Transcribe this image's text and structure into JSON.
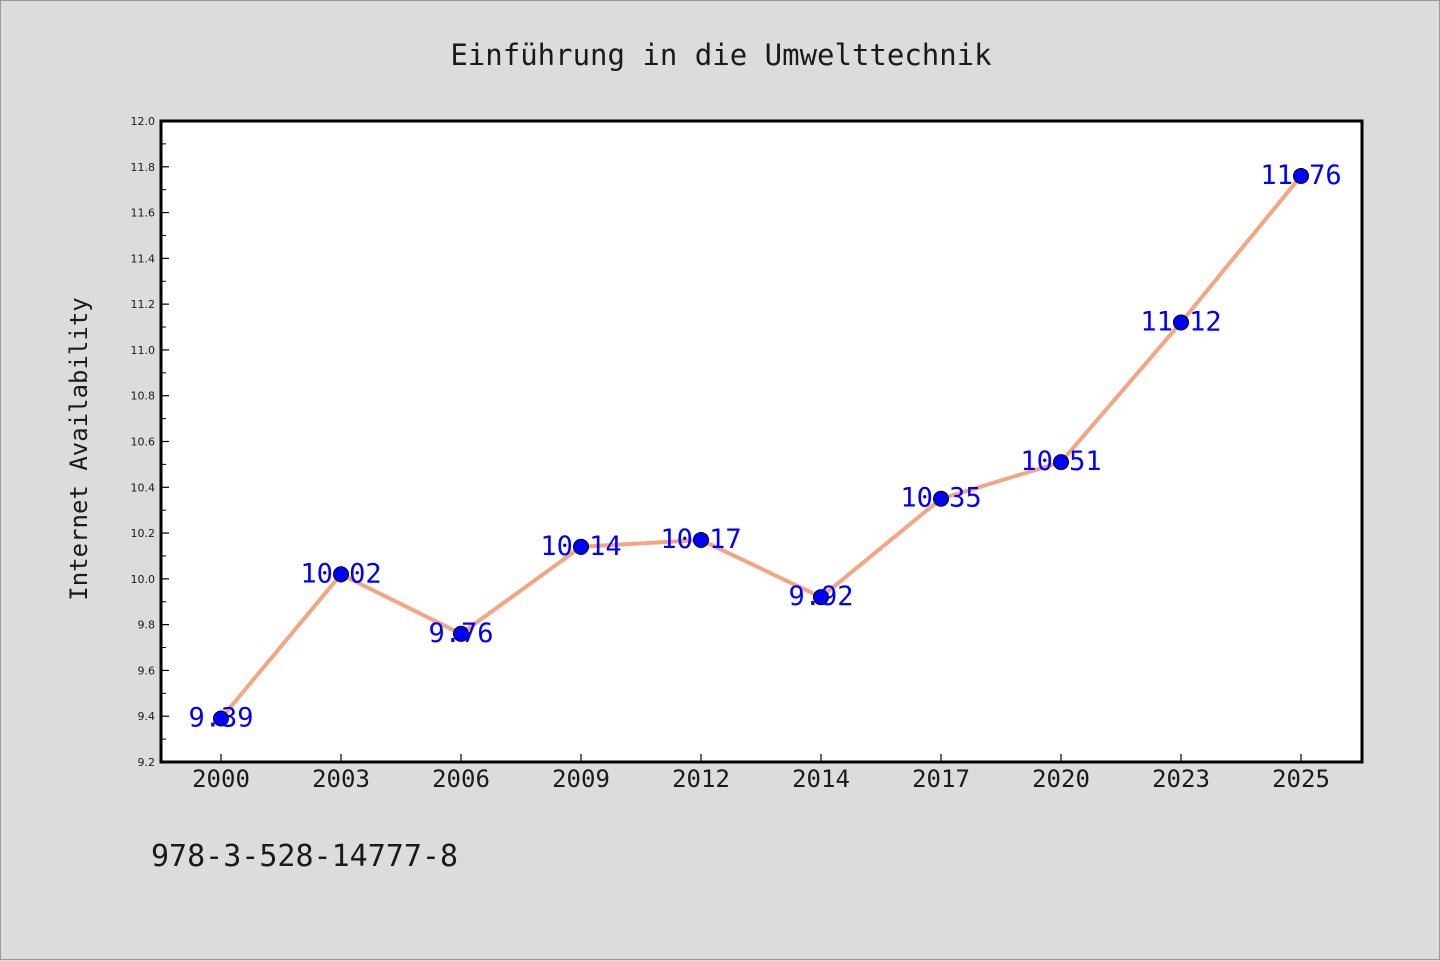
{
  "page": {
    "title": "Einführung in die Umwelttechnik",
    "footer_text": "978-3-528-14777-8"
  },
  "colors": {
    "background": "#dcdcdc",
    "plot_background": "#ffffff",
    "line": "#f4a582",
    "marker": "#0000ff",
    "label": "#0000ff",
    "text": "#1a1a1a"
  },
  "chart_data": {
    "type": "line",
    "title": "Einführung in die Umwelttechnik",
    "xlabel": "",
    "ylabel": "Internet Availability",
    "categories": [
      "2000",
      "2003",
      "2006",
      "2009",
      "2012",
      "2014",
      "2017",
      "2020",
      "2023",
      "2025"
    ],
    "series": [
      {
        "values": [
          9.39,
          10.02,
          9.76,
          10.14,
          10.17,
          9.92,
          10.35,
          10.51,
          11.12,
          11.76
        ],
        "labels": [
          "9.39",
          "10.02",
          "9.76",
          "10.14",
          "10.17",
          "9.92",
          "10.35",
          "10.51",
          "11.12",
          "11.76"
        ]
      }
    ],
    "ylim": [
      9.2,
      12.0
    ],
    "yticks": [
      "9.2",
      "9.4",
      "9.6",
      "9.8",
      "10.0",
      "10.2",
      "10.4",
      "10.6",
      "10.8",
      "11.0",
      "11.2",
      "11.4",
      "11.6",
      "11.8",
      "12.0"
    ],
    "grid": false,
    "legend": "none"
  }
}
